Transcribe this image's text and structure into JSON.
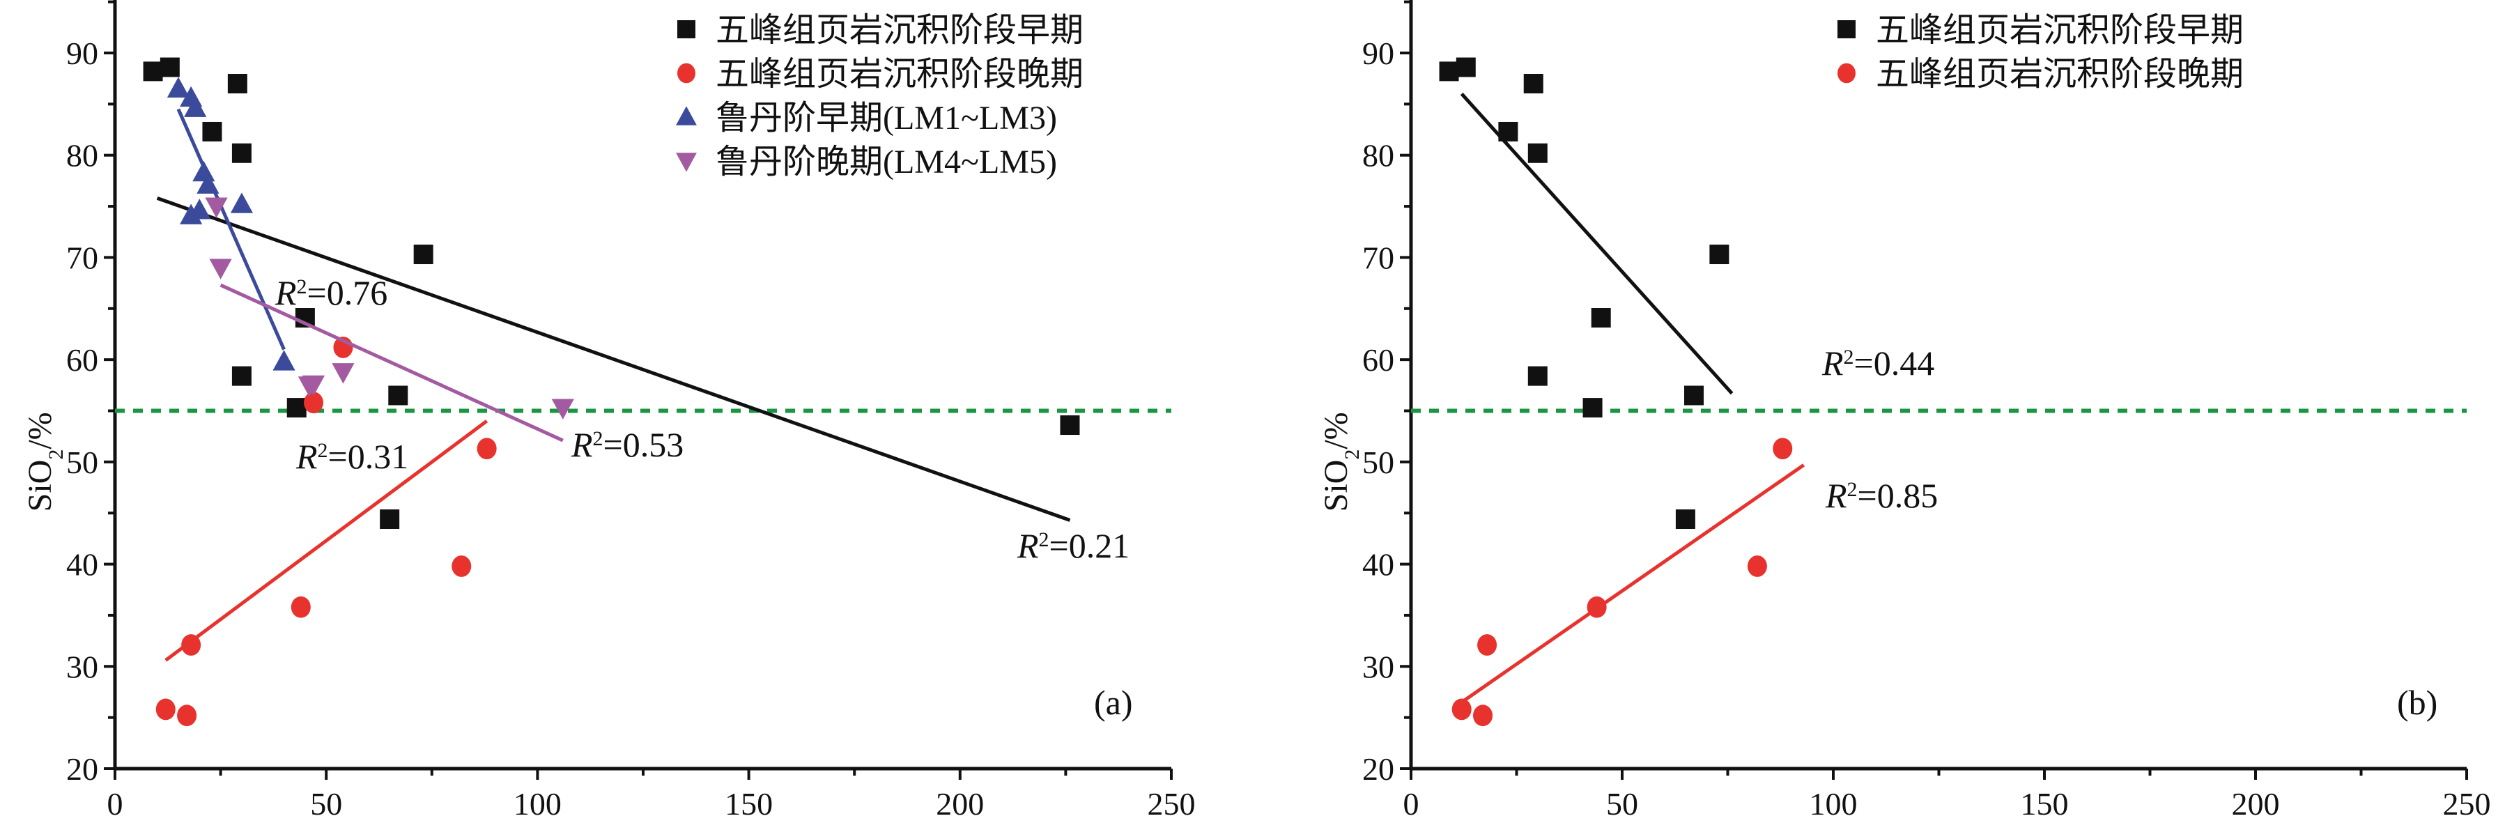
{
  "chart_data": [
    {
      "id": "a",
      "type": "scatter",
      "panel_label": "(a)",
      "ylabel": {
        "main": "SiO",
        "sub": "2",
        "rest": "/%"
      },
      "xlabel": "",
      "xlim": [
        0,
        250
      ],
      "ylim": [
        20,
        95
      ],
      "xticks": [
        "0",
        "50",
        "100",
        "150",
        "200",
        "250"
      ],
      "yticks": [
        "20",
        "30",
        "40",
        "50",
        "60",
        "70",
        "80",
        "90"
      ],
      "reference_line": {
        "y": 55,
        "color": "#1a9641",
        "style": "dotted"
      },
      "series": [
        {
          "name": "五峰组页岩沉积阶段早期",
          "marker": "square",
          "color": "#111111",
          "points": [
            [
              9,
              88.2
            ],
            [
              13,
              88.6
            ],
            [
              29,
              87
            ],
            [
              23,
              82.3
            ],
            [
              30,
              80.2
            ],
            [
              73,
              70.3
            ],
            [
              45,
              64.1
            ],
            [
              30,
              58.4
            ],
            [
              43,
              55.3
            ],
            [
              67,
              56.5
            ],
            [
              65,
              44.4
            ],
            [
              226,
              53.6
            ]
          ],
          "fit": {
            "from": [
              10,
              75.8
            ],
            "to": [
              226,
              44.3
            ],
            "r2": "R",
            "r2_text": "=0.21"
          }
        },
        {
          "name": "五峰组页岩沉积阶段晚期",
          "marker": "circle",
          "color": "#e8322d",
          "points": [
            [
              12,
              25.8
            ],
            [
              17,
              25.2
            ],
            [
              18,
              32.1
            ],
            [
              44,
              35.8
            ],
            [
              82,
              39.8
            ],
            [
              88,
              51.3
            ],
            [
              47,
              55.8
            ],
            [
              54,
              61.2
            ]
          ],
          "fit": {
            "from": [
              12,
              30.6
            ],
            "to": [
              88,
              54
            ],
            "r2": "R",
            "r2_text": "=0.31"
          }
        },
        {
          "name": "鲁丹阶早期(LM1~LM3)",
          "marker": "triangle-up",
          "color": "#3b4a9a",
          "points": [
            [
              15,
              86.5
            ],
            [
              18,
              85.6
            ],
            [
              19,
              84.6
            ],
            [
              21,
              78.3
            ],
            [
              22,
              77.1
            ],
            [
              18,
              74.1
            ],
            [
              20,
              74.6
            ],
            [
              30,
              75.2
            ],
            [
              40,
              59.8
            ]
          ],
          "fit": {
            "from": [
              15,
              84.5
            ],
            "to": [
              40,
              61
            ],
            "r2": "R",
            "r2_text": "=0.76"
          }
        },
        {
          "name": "鲁丹阶晚期(LM4~LM5)",
          "marker": "triangle-down",
          "color": "#a45aa0",
          "points": [
            [
              24,
              75
            ],
            [
              25,
              69
            ],
            [
              46,
              57.5
            ],
            [
              47,
              57.6
            ],
            [
              54,
              58.8
            ],
            [
              106,
              55.3
            ]
          ],
          "fit": {
            "from": [
              25,
              67.3
            ],
            "to": [
              106,
              52.1
            ],
            "r2": "R",
            "r2_text": "=0.53"
          }
        }
      ]
    },
    {
      "id": "b",
      "type": "scatter",
      "panel_label": "(b)",
      "ylabel": {
        "main": "SiO",
        "sub": "2",
        "rest": "/%"
      },
      "xlabel": "",
      "xlim": [
        0,
        250
      ],
      "ylim": [
        20,
        95
      ],
      "xticks": [
        "0",
        "50",
        "100",
        "150",
        "200",
        "250"
      ],
      "yticks": [
        "20",
        "30",
        "40",
        "50",
        "60",
        "70",
        "80",
        "90"
      ],
      "reference_line": {
        "y": 55,
        "color": "#1a9641",
        "style": "dotted"
      },
      "series": [
        {
          "name": "五峰组页岩沉积阶段早期",
          "marker": "square",
          "color": "#111111",
          "points": [
            [
              9,
              88.2
            ],
            [
              13,
              88.6
            ],
            [
              29,
              87
            ],
            [
              23,
              82.3
            ],
            [
              30,
              80.2
            ],
            [
              73,
              70.3
            ],
            [
              45,
              64.1
            ],
            [
              30,
              58.4
            ],
            [
              43,
              55.3
            ],
            [
              67,
              56.5
            ],
            [
              65,
              44.4
            ]
          ],
          "fit": {
            "from": [
              12,
              86
            ],
            "to": [
              76,
              56.7
            ],
            "r2": "R",
            "r2_text": "=0.44"
          }
        },
        {
          "name": "五峰组页岩沉积阶段晚期",
          "marker": "circle",
          "color": "#e8322d",
          "points": [
            [
              12,
              25.8
            ],
            [
              17,
              25.2
            ],
            [
              18,
              32.1
            ],
            [
              44,
              35.8
            ],
            [
              82,
              39.8
            ],
            [
              88,
              51.3
            ]
          ],
          "fit": {
            "from": [
              12,
              26.5
            ],
            "to": [
              93,
              49.7
            ],
            "r2": "R",
            "r2_text": "=0.85"
          }
        }
      ]
    }
  ]
}
